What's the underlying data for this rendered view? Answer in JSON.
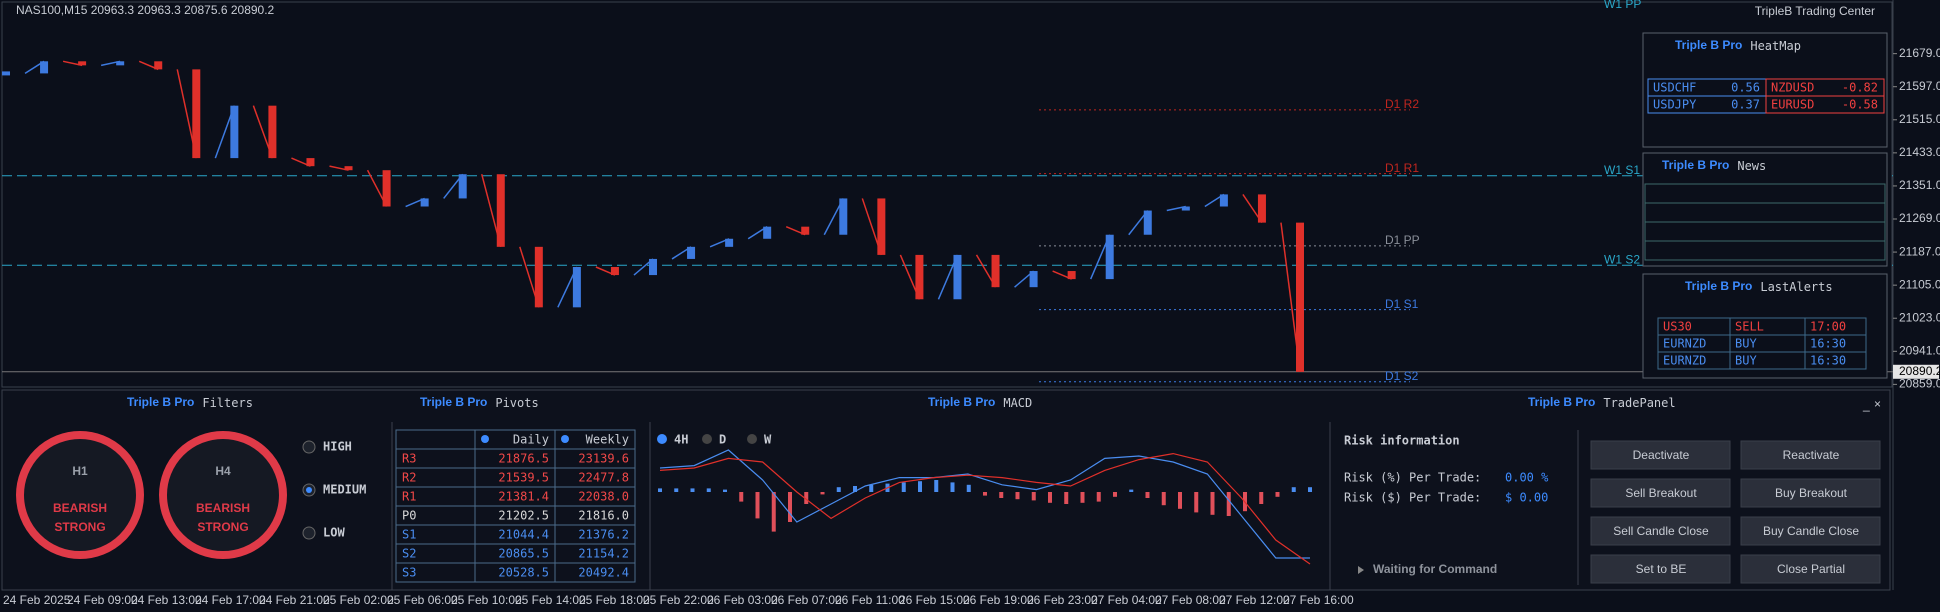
{
  "chart": {
    "symbol_info": "NAS100,M15  20963.3 20963.3 20875.6 20890.2",
    "broker_label": "TripleB Trading Center",
    "ylim": [
      20850,
      21812
    ],
    "price_ticks": [
      {
        "value": 21679,
        "label": "21679.0"
      },
      {
        "value": 21597,
        "label": "21597.0"
      },
      {
        "value": 21515,
        "label": "21515.0"
      },
      {
        "value": 21433,
        "label": "21433.0"
      },
      {
        "value": 21351,
        "label": "21351.0"
      },
      {
        "value": 21269,
        "label": "21269.0"
      },
      {
        "value": 21187,
        "label": "21187.0"
      },
      {
        "value": 21105,
        "label": "21105.0"
      },
      {
        "value": 21023,
        "label": "21023.0"
      },
      {
        "value": 20941,
        "label": "20941.0"
      },
      {
        "value": 20859,
        "label": "20859.0"
      }
    ],
    "current_price": 20890.2,
    "time_labels": [
      "24 Feb 2025",
      "24 Feb 09:00",
      "24 Feb 13:00",
      "24 Feb 17:00",
      "24 Feb 21:00",
      "25 Feb 02:00",
      "25 Feb 06:00",
      "25 Feb 10:00",
      "25 Feb 14:00",
      "25 Feb 18:00",
      "25 Feb 22:00",
      "26 Feb 03:00",
      "26 Feb 07:00",
      "26 Feb 11:00",
      "26 Feb 15:00",
      "26 Feb 19:00",
      "26 Feb 23:00",
      "27 Feb 04:00",
      "27 Feb 08:00",
      "27 Feb 12:00",
      "27 Feb 16:00"
    ],
    "close": [
      21630,
      21660,
      21650,
      21660,
      21640,
      21420,
      21550,
      21420,
      21400,
      21390,
      21300,
      21320,
      21380,
      21200,
      21050,
      21150,
      21130,
      21170,
      21200,
      21220,
      21250,
      21230,
      21320,
      21180,
      21070,
      21180,
      21100,
      21140,
      21120,
      21230,
      21290,
      21300,
      21330,
      21260,
      20890
    ],
    "level_labels": {
      "daily": [
        "D1 R2",
        "D1 R1",
        "D1 PP",
        "D1 S1",
        "D1 S2"
      ],
      "weekly": [
        "W1 PP",
        "W1 S1",
        "W1 S2"
      ]
    }
  },
  "heatmap": {
    "brand": "Triple B Pro",
    "title": "HeatMap",
    "rows": [
      [
        {
          "pair": "USDCHF",
          "value": 0.56
        },
        {
          "pair": "NZDUSD",
          "value": -0.82
        }
      ],
      [
        {
          "pair": "USDJPY",
          "value": 0.37
        },
        {
          "pair": "EURUSD",
          "value": -0.58
        }
      ]
    ]
  },
  "news": {
    "brand": "Triple B Pro",
    "title": "News"
  },
  "alerts": {
    "brand": "Triple B Pro",
    "title": "LastAlerts",
    "rows": [
      [
        "US30",
        "SELL",
        "17:00"
      ],
      [
        "EURNZD",
        "BUY",
        "16:30"
      ],
      [
        "EURNZD",
        "BUY",
        "16:30"
      ]
    ]
  },
  "filters": {
    "brand": "Triple B Pro",
    "title": "Filters",
    "gauges": [
      {
        "timeframe": "H1",
        "trend": "BEARISH",
        "strength": "STRONG"
      },
      {
        "timeframe": "H4",
        "trend": "BEARISH",
        "strength": "STRONG"
      }
    ],
    "options": [
      "HIGH",
      "MEDIUM",
      "LOW"
    ],
    "selected": "MEDIUM"
  },
  "pivots": {
    "brand": "Triple B Pro",
    "title": "Pivots",
    "columns": [
      "Daily",
      "Weekly"
    ],
    "rows": [
      [
        "R3",
        21876.5,
        23139.6
      ],
      [
        "R2",
        21539.5,
        22477.8
      ],
      [
        "R1",
        21381.4,
        {
          "value": 22038,
          "label": "22038.0"
        }
      ],
      [
        "P0",
        21202.5,
        {
          "value": 21816,
          "label": "21816.0"
        }
      ],
      [
        "S1",
        21044.4,
        21376.2
      ],
      [
        "S2",
        20865.5,
        21154.2
      ],
      [
        "S3",
        20528.5,
        20492.4
      ]
    ]
  },
  "macd": {
    "brand": "Triple B Pro",
    "title": "MACD",
    "timeframes": [
      "4H",
      "D",
      "W"
    ],
    "selected": "4H",
    "histogram": [
      3,
      3,
      3,
      3,
      2,
      -8,
      -22,
      -33,
      -25,
      -10,
      -2,
      4,
      5,
      6,
      7,
      8,
      9,
      10,
      8,
      6,
      -3,
      -5,
      -6,
      -7,
      -9,
      -10,
      -9,
      -8,
      -4,
      2,
      -5,
      -11,
      -14,
      -17,
      -19,
      -20,
      -16,
      -10,
      -4,
      4,
      4
    ],
    "main": [
      20,
      22,
      35,
      10,
      -25,
      -10,
      5,
      12,
      12,
      15,
      6,
      2,
      10,
      28,
      30,
      25,
      15,
      -20,
      -55,
      -55
    ],
    "signal": [
      18,
      20,
      28,
      25,
      0,
      -22,
      -5,
      8,
      12,
      14,
      12,
      8,
      5,
      18,
      27,
      32,
      25,
      -5,
      -40,
      -60
    ]
  },
  "trade_panel": {
    "brand": "Triple B Pro",
    "title": "TradePanel",
    "heading": "Risk information",
    "risk_pct_label": "Risk (%) Per Trade:",
    "risk_pct_value": "0.00 %",
    "risk_usd_label": "Risk ($) Per Trade:",
    "risk_usd_value": "$ 0.00",
    "status": "Waiting for Command",
    "buttons": [
      "Deactivate",
      "Reactivate",
      "Sell Breakout",
      "Buy Breakout",
      "Sell Candle Close",
      "Buy Candle Close",
      "Set to BE",
      "Close Partial"
    ]
  }
}
